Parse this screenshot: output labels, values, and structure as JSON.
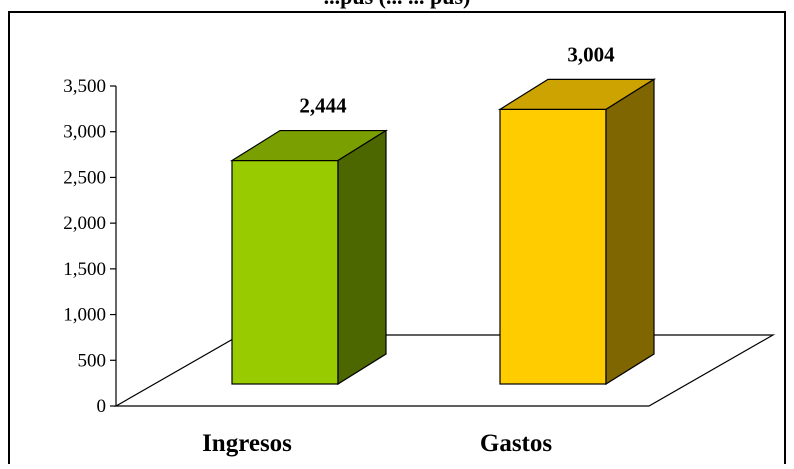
{
  "chart_data": {
    "type": "bar",
    "title": "...pus (... ... pus)",
    "categories": [
      "Ingresos",
      "Gastos"
    ],
    "values": [
      2444,
      3004
    ],
    "data_labels": [
      "2,444",
      "3,004"
    ],
    "ylim": [
      0,
      3500
    ],
    "yticks": [
      0,
      500,
      1000,
      1500,
      2000,
      2500,
      3000,
      3500
    ],
    "ytick_labels": [
      "0",
      "500",
      "1,000",
      "1,500",
      "2,000",
      "2,500",
      "3,000",
      "3,500"
    ],
    "xlabel": "",
    "ylabel": "",
    "grid": false,
    "legend": "none",
    "three_d": true
  },
  "colors": {
    "ingresos_front": "#99CC00",
    "ingresos_top": "#7A9F00",
    "ingresos_side": "#4C6600",
    "gastos_front": "#FFCC00",
    "gastos_top": "#CCA300",
    "gastos_side": "#806600",
    "frame": "#000000",
    "background": "#FFFFFF"
  }
}
